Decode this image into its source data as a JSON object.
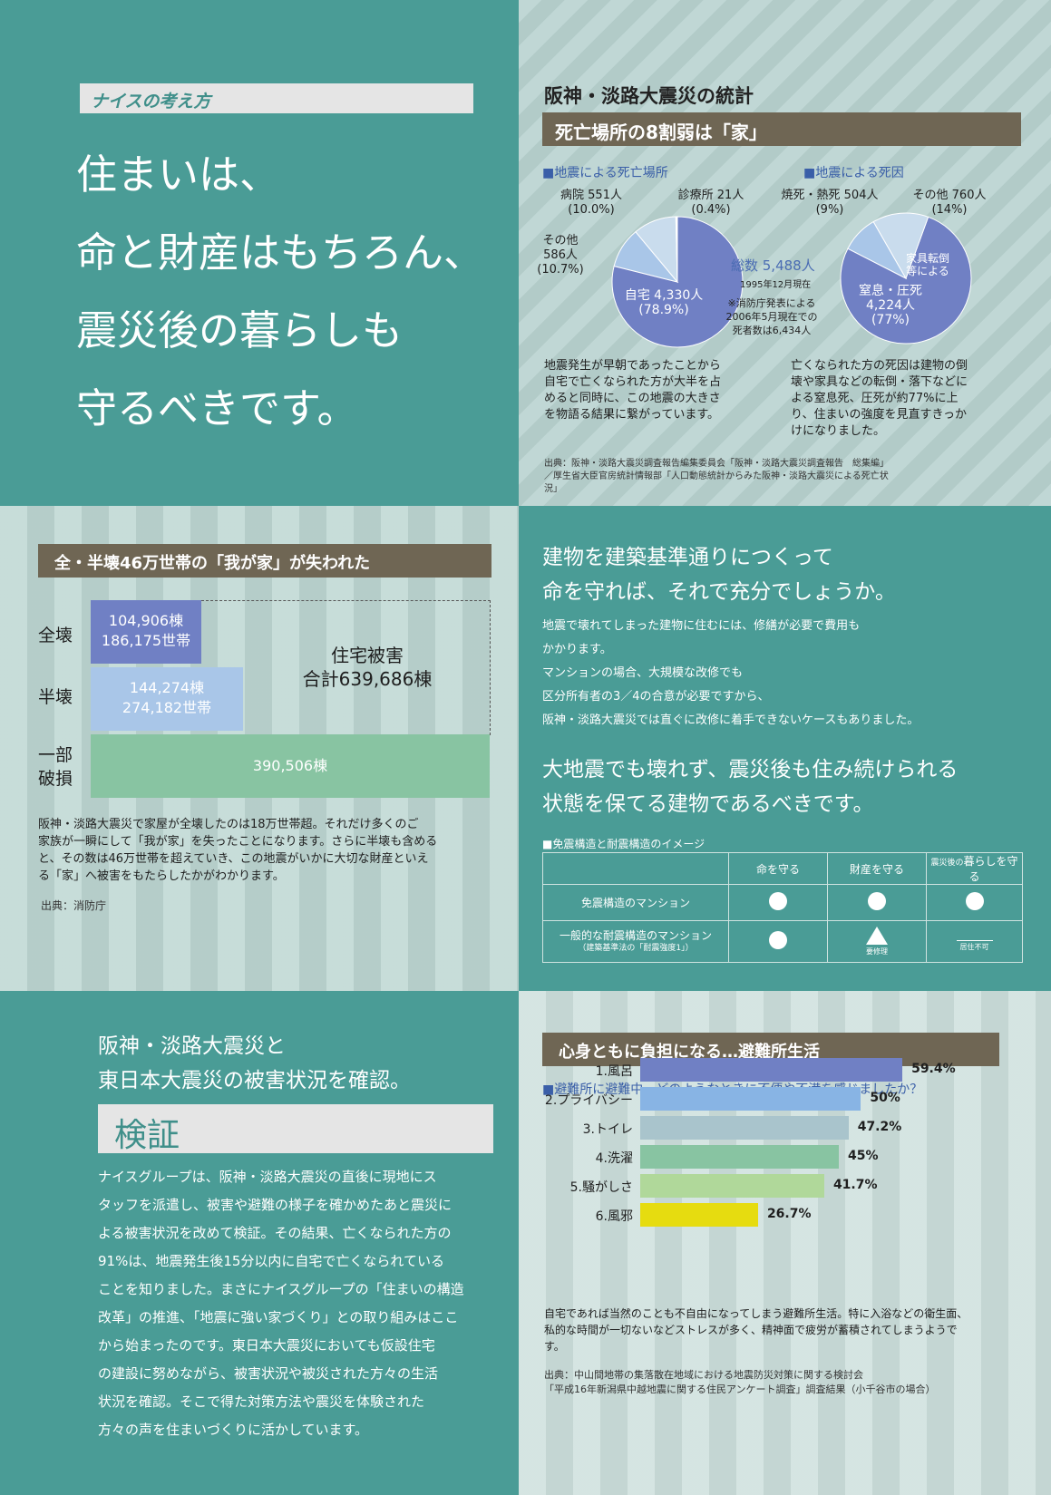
{
  "top_left": {
    "tag": "ナイスの考え方",
    "headline": [
      "住まいは、",
      "命と財産はもちろん、",
      "震災後の暮らしも",
      "守るべきです。"
    ]
  },
  "top_right": {
    "title": "阪神・淡路大震災の統計",
    "banner": "死亡場所の8割弱は「家」",
    "pie1_title": "■地震による死亡場所",
    "pie2_title": "■地震による死因",
    "pie1_labels": {
      "hospital": "病院 551人",
      "hospital_pct": "(10.0%)",
      "clinic": "診療所 21人",
      "clinic_pct": "(0.4%)",
      "other": "その他",
      "other_num": "586人",
      "other_pct": "(10.7%)",
      "home": "自宅 4,330人",
      "home_pct": "(78.9%)"
    },
    "total": "総数 5,488人",
    "total_date": "1995年12月現在",
    "note": [
      "※消防庁発表による",
      "2006年5月現在での",
      "死者数は6,434人"
    ],
    "pie2_labels": {
      "burn": "焼死・熱死 504人",
      "burn_pct": "(9%)",
      "other": "その他 760人",
      "other_pct": "(14%)",
      "furniture": [
        "家具転倒",
        "等による"
      ],
      "crush": "窒息・圧死",
      "crush_num": "4,224人",
      "crush_pct": "(77%)"
    },
    "pie1_data": [
      {
        "name": "自宅",
        "value": 4330,
        "color": "#7080c4"
      },
      {
        "name": "病院",
        "value": 551,
        "color": "#a9c6e8"
      },
      {
        "name": "その他",
        "value": 586,
        "color": "#c9dced"
      },
      {
        "name": "診療所",
        "value": 21,
        "color": "#ffffff"
      }
    ],
    "pie2_data": [
      {
        "name": "窒息・圧死",
        "value": 4224,
        "color": "#7080c4"
      },
      {
        "name": "焼死・熱死",
        "value": 504,
        "color": "#a9c6e8"
      },
      {
        "name": "その他",
        "value": 760,
        "color": "#c9dced"
      }
    ],
    "text_left": [
      "地震発生が早朝であったことから",
      "自宅で亡くなられた方が大半を占",
      "めると同時に、この地震の大きさ",
      "を物語る結果に繋がっています。"
    ],
    "text_right": [
      "亡くなられた方の死因は建物の倒",
      "壊や家具などの転倒・落下などに",
      "よる窒息死、圧死が約77%に上",
      "り、住まいの強度を見直すきっか",
      "けになりました。"
    ],
    "source": [
      "出典：阪神・淡路大震災調査報告編集委員会「阪神・淡路大震災調査報告　総集編」",
      "／厚生省大臣官房統計情報部「人口動態統計からみた阪神・淡路大震災による死亡状",
      "況」"
    ]
  },
  "mid_left": {
    "banner": "全・半壊46万世帯の「我が家」が失われた",
    "rows": [
      {
        "label": "全壊",
        "text1": "104,906棟",
        "text2": "186,175世帯",
        "color": "#7080c4"
      },
      {
        "label": "半壊",
        "text1": "144,274棟",
        "text2": "274,182世帯",
        "color": "#a9c6e8"
      },
      {
        "label": "一部",
        "label2": "破損",
        "text1": "390,506棟",
        "color": "#88c4a2"
      }
    ],
    "total_title": "住宅被害",
    "total_value": "合計639,686棟",
    "body": [
      "阪神・淡路大震災で家屋が全壊したのは18万世帯超。それだけ多くのご",
      "家族が一瞬にして「我が家」を失ったことになります。さらに半壊も含める",
      "と、その数は46万世帯を超えていき、この地震がいかに大切な財産といえ",
      "る「家」へ被害をもたらしたかがわかります。"
    ],
    "source": "出典：消防庁"
  },
  "mid_right": {
    "heading": [
      "建物を建築基準通りにつくって",
      "命を守れば、それで充分でしょうか。"
    ],
    "body": [
      "地震で壊れてしまった建物に住むには、修繕が必要で費用も",
      "かかります。",
      "マンションの場合、大規模な改修でも",
      "区分所有者の3／4の合意が必要ですから、",
      "阪神・淡路大震災では直ぐに改修に着手できないケースもありました。"
    ],
    "heading2": [
      "大地震でも壊れず、震災後も住み続けられる",
      "状態を保てる建物であるべきです。"
    ],
    "table_title": "■免震構造と耐震構造のイメージ",
    "col_headers": [
      "命を守る",
      "財産を守る"
    ],
    "col3_small": "震災後の",
    "col3_big": "暮らしを守る",
    "row1": "免震構造のマンション",
    "row2": "一般的な耐震構造のマンション",
    "row2_sub": "（建築基準法の「耐震強度1」）",
    "repair": "要修理",
    "uninhabitable": "居住不可"
  },
  "bottom_left": {
    "heading": [
      "阪神・淡路大震災と",
      "東日本大震災の被害状況を確認。"
    ],
    "tag": "検証",
    "body": [
      "ナイスグループは、阪神・淡路大震災の直後に現地にス",
      "タッフを派遣し、被害や避難の様子を確かめたあと震災に",
      "よる被害状況を改めて検証。その結果、亡くなられた方の",
      "91%は、地震発生後15分以内に自宅で亡くなられている",
      "ことを知りました。まさにナイスグループの「住まいの構造",
      "改革」の推進、「地震に強い家づくり」との取り組みはここ",
      "から始まったのです。東日本大震災においても仮設住宅",
      "の建設に努めながら、被害状況や被災された方々の生活",
      "状況を確認。そこで得た対策方法や震災を体験された",
      "方々の声を住まいづくりに活かしています。"
    ]
  },
  "bottom_right": {
    "banner": "心身ともに負担になる…避難所生活",
    "question": "■避難所に避難中、どのようなときに不便や不満を感じましたか？",
    "chart_data": {
      "type": "bar",
      "orientation": "horizontal",
      "categories": [
        "1.風呂",
        "2.プライバシー",
        "3.トイレ",
        "4.洗濯",
        "5.騒がしさ",
        "6.風邪"
      ],
      "values": [
        59.4,
        50,
        47.2,
        45,
        41.7,
        26.7
      ],
      "value_labels": [
        "59.4%",
        "50%",
        "47.2%",
        "45%",
        "41.7%",
        "26.7%"
      ],
      "colors": [
        "#7080c4",
        "#88b4e4",
        "#a9c4cc",
        "#88c4a2",
        "#b0d89a",
        "#e6dc10"
      ]
    },
    "body": [
      "自宅であれば当然のことも不自由になってしまう避難所生活。特に入浴などの衛生面、",
      "私的な時間が一切ないなどストレスが多く、精神面で疲労が蓄積されてしまうようで",
      "す。"
    ],
    "source": [
      "出典：中山間地帯の集落散在地域における地震防災対策に関する検討会",
      "「平成16年新潟県中越地震に関する住民アンケート調査」調査結果（小千谷市の場合）"
    ]
  }
}
